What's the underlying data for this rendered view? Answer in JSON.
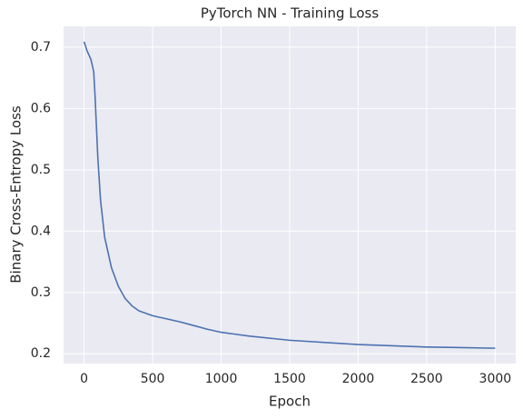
{
  "chart_data": {
    "type": "line",
    "title": "PyTorch NN - Training Loss",
    "x_label": "Epoch",
    "y_label": "Binary Cross-Entropy Loss",
    "x": [
      0,
      20,
      50,
      70,
      80,
      100,
      120,
      150,
      200,
      250,
      300,
      350,
      400,
      500,
      600,
      700,
      800,
      900,
      1000,
      1200,
      1500,
      2000,
      2500,
      3000
    ],
    "values": [
      0.709,
      0.695,
      0.68,
      0.66,
      0.62,
      0.52,
      0.45,
      0.39,
      0.34,
      0.31,
      0.29,
      0.278,
      0.27,
      0.262,
      0.257,
      0.252,
      0.246,
      0.24,
      0.235,
      0.229,
      0.222,
      0.215,
      0.211,
      0.209
    ],
    "color": "#4c72b0",
    "xlim": [
      -150,
      3150
    ],
    "xticks": [
      0,
      500,
      1000,
      1500,
      2000,
      2500,
      3000
    ],
    "ylim": [
      0.184,
      0.734
    ],
    "yticks": [
      0.2,
      0.3,
      0.4,
      0.5,
      0.6,
      0.7
    ],
    "grid": true
  }
}
